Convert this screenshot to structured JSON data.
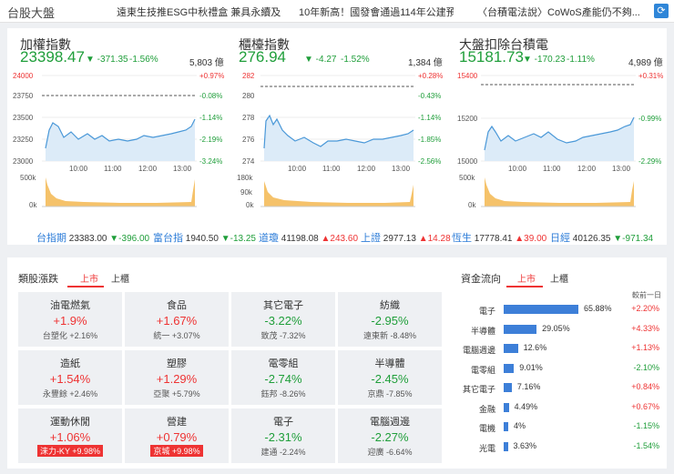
{
  "header": {
    "title": "台股大盤",
    "news": [
      "遠東生技推ESG中秋禮盒 兼具永續及...",
      "10年新高！國發會通過114年公建預...",
      "〈台積電法說〉CoWoS產能仍不夠..."
    ]
  },
  "indices": [
    {
      "name": "加權指數",
      "price": "23398.47",
      "change": "▼ -371.35",
      "pct": "-1.56%",
      "volume": "5,803 億",
      "y_labels": [
        "24000",
        "23750",
        "23500",
        "23250",
        "23000"
      ],
      "pct_labels": [
        "+0.97%",
        "-0.08%",
        "-1.14%",
        "-2.19%",
        "-3.24%"
      ],
      "vol_labels": [
        "500k",
        "0k"
      ],
      "times": [
        "10:00",
        "11:00",
        "12:00",
        "13:00"
      ]
    },
    {
      "name": "櫃檯指數",
      "price": "276.94",
      "change": "▼ -4.27",
      "pct": "-1.52%",
      "volume": "1,384 億",
      "y_labels": [
        "282",
        "280",
        "278",
        "276",
        "274"
      ],
      "pct_labels": [
        "+0.28%",
        "-0.43%",
        "-1.14%",
        "-1.85%",
        "-2.56%"
      ],
      "vol_labels": [
        "180k",
        "90k",
        "0k"
      ],
      "times": [
        "10:00",
        "11:00",
        "12:00",
        "13:00"
      ]
    },
    {
      "name": "大盤扣除台積電",
      "price": "15181.73",
      "change": "▼ -170.23",
      "pct": "-1.11%",
      "volume": "4,989 億",
      "y_labels": [
        "15400",
        "15200",
        "15000"
      ],
      "pct_labels": [
        "+0.31%",
        "-0.99%",
        "-2.29%"
      ],
      "vol_labels": [
        "500k",
        "0k"
      ],
      "times": [
        "10:00",
        "11:00",
        "12:00",
        "13:00"
      ]
    }
  ],
  "ticker": [
    {
      "name": "台指期",
      "value": "23383.00",
      "change": "▼-396.00",
      "dir": "dn"
    },
    {
      "name": "富台指",
      "value": "1940.50",
      "change": "▼-13.25",
      "dir": "dn"
    },
    {
      "name": "道瓊",
      "value": "41198.08",
      "change": "▲243.60",
      "dir": "up"
    },
    {
      "name": "上證",
      "value": "2977.13",
      "change": "▲14.28",
      "dir": "up"
    },
    {
      "name": "恆生",
      "value": "17778.41",
      "change": "▲39.00",
      "dir": "up"
    },
    {
      "name": "日經",
      "value": "40126.35",
      "change": "▼-971.34",
      "dir": "dn"
    }
  ],
  "sectors": {
    "title": "類股漲跌",
    "tabs": [
      "上市",
      "上櫃"
    ],
    "cards": [
      {
        "name": "油電燃氣",
        "pct": "+1.9%",
        "sub": "台塑化 +2.16%",
        "dir": "red"
      },
      {
        "name": "食品",
        "pct": "+1.67%",
        "sub": "統一 +3.07%",
        "dir": "red"
      },
      {
        "name": "其它電子",
        "pct": "-3.22%",
        "sub": "致茂 -7.32%",
        "dir": "green"
      },
      {
        "name": "紡織",
        "pct": "-2.95%",
        "sub": "遠東新 -8.48%",
        "dir": "green"
      },
      {
        "name": "造紙",
        "pct": "+1.54%",
        "sub": "永豐餘 +2.46%",
        "dir": "red"
      },
      {
        "name": "塑膠",
        "pct": "+1.29%",
        "sub": "亞聚 +5.79%",
        "dir": "red"
      },
      {
        "name": "電零組",
        "pct": "-2.74%",
        "sub": "鈺邦 -8.26%",
        "dir": "green"
      },
      {
        "name": "半導體",
        "pct": "-2.45%",
        "sub": "京鼎 -7.85%",
        "dir": "green"
      },
      {
        "name": "運動休閒",
        "pct": "+1.06%",
        "sub": "涞力-KY +9.98%",
        "dir": "red",
        "tag": true
      },
      {
        "name": "營建",
        "pct": "+0.79%",
        "sub": "京城 +9.98%",
        "dir": "red",
        "tag": true
      },
      {
        "name": "電子",
        "pct": "-2.31%",
        "sub": "建通 -2.24%",
        "dir": "green"
      },
      {
        "name": "電腦週邊",
        "pct": "-2.27%",
        "sub": "迎廣 -6.64%",
        "dir": "green"
      }
    ]
  },
  "flow": {
    "title": "資金流向",
    "tabs": [
      "上市",
      "上櫃"
    ],
    "col_header": "較前一日",
    "rows": [
      {
        "label": "電子",
        "pct": "65.88%",
        "value": 65.88,
        "chg": "+2.20%",
        "dir": "red"
      },
      {
        "label": "半導體",
        "pct": "29.05%",
        "value": 29.05,
        "chg": "+4.33%",
        "dir": "red"
      },
      {
        "label": "電腦週邊",
        "pct": "12.6%",
        "value": 12.6,
        "chg": "+1.13%",
        "dir": "red"
      },
      {
        "label": "電零組",
        "pct": "9.01%",
        "value": 9.01,
        "chg": "-2.10%",
        "dir": "green"
      },
      {
        "label": "其它電子",
        "pct": "7.16%",
        "value": 7.16,
        "chg": "+0.84%",
        "dir": "red"
      },
      {
        "label": "金融",
        "pct": "4.49%",
        "value": 4.49,
        "chg": "+0.67%",
        "dir": "red"
      },
      {
        "label": "電機",
        "pct": "4%",
        "value": 4,
        "chg": "-1.15%",
        "dir": "green"
      },
      {
        "label": "光電",
        "pct": "3.63%",
        "value": 3.63,
        "chg": "-1.54%",
        "dir": "green"
      }
    ]
  }
}
